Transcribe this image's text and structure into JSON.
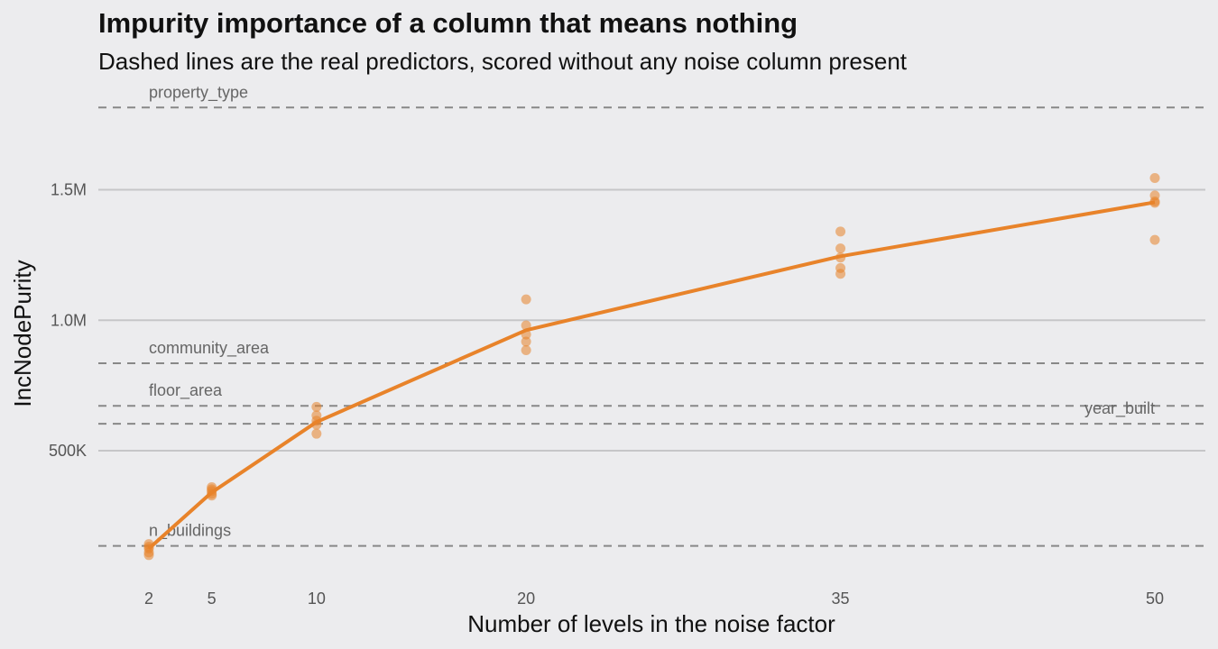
{
  "chart_data": {
    "type": "scatter",
    "title": "Impurity importance of a column that means nothing",
    "subtitle": "Dashed lines are the real predictors, scored without any noise column present",
    "xlabel": "Number of levels in the noise factor",
    "ylabel": "IncNodePurity",
    "x_ticks": [
      2,
      5,
      10,
      20,
      35,
      50
    ],
    "y_ticks": [
      {
        "value": 500000,
        "label": "500K"
      },
      {
        "value": 1000000,
        "label": "1.0M"
      },
      {
        "value": 1500000,
        "label": "1.5M"
      }
    ],
    "xlim": [
      0,
      52
    ],
    "ylim": [
      0,
      2000000
    ],
    "grid": "horizontal",
    "colors": {
      "series": "#e8832a",
      "points": "#e8832a",
      "reference": "#888888",
      "grid": "#c6c6c8",
      "background": "#ececee"
    },
    "points": [
      {
        "x": 2,
        "y": 142000
      },
      {
        "x": 2,
        "y": 125000
      },
      {
        "x": 2,
        "y": 110000
      },
      {
        "x": 2,
        "y": 100000
      },
      {
        "x": 2,
        "y": 132000
      },
      {
        "x": 5,
        "y": 360000
      },
      {
        "x": 5,
        "y": 345000
      },
      {
        "x": 5,
        "y": 335000
      },
      {
        "x": 5,
        "y": 328000
      },
      {
        "x": 5,
        "y": 352000
      },
      {
        "x": 10,
        "y": 668000
      },
      {
        "x": 10,
        "y": 635000
      },
      {
        "x": 10,
        "y": 615000
      },
      {
        "x": 10,
        "y": 600000
      },
      {
        "x": 10,
        "y": 565000
      },
      {
        "x": 20,
        "y": 1080000
      },
      {
        "x": 20,
        "y": 980000
      },
      {
        "x": 20,
        "y": 945000
      },
      {
        "x": 20,
        "y": 918000
      },
      {
        "x": 20,
        "y": 885000
      },
      {
        "x": 35,
        "y": 1340000
      },
      {
        "x": 35,
        "y": 1275000
      },
      {
        "x": 35,
        "y": 1240000
      },
      {
        "x": 35,
        "y": 1200000
      },
      {
        "x": 35,
        "y": 1178000
      },
      {
        "x": 50,
        "y": 1545000
      },
      {
        "x": 50,
        "y": 1478000
      },
      {
        "x": 50,
        "y": 1455000
      },
      {
        "x": 50,
        "y": 1450000
      },
      {
        "x": 50,
        "y": 1308000
      }
    ],
    "line": [
      {
        "x": 2,
        "y": 125000
      },
      {
        "x": 5,
        "y": 340000
      },
      {
        "x": 10,
        "y": 610000
      },
      {
        "x": 20,
        "y": 962000
      },
      {
        "x": 35,
        "y": 1245000
      },
      {
        "x": 50,
        "y": 1452000
      }
    ],
    "reference_lines": [
      {
        "label": "property_type",
        "y": 1815000,
        "label_position": "left"
      },
      {
        "label": "community_area",
        "y": 835000,
        "label_position": "left"
      },
      {
        "label": "floor_area",
        "y": 672000,
        "label_position": "left"
      },
      {
        "label": "year_built",
        "y": 603000,
        "label_position": "right"
      },
      {
        "label": "n_buildings",
        "y": 135000,
        "label_position": "left"
      }
    ]
  }
}
